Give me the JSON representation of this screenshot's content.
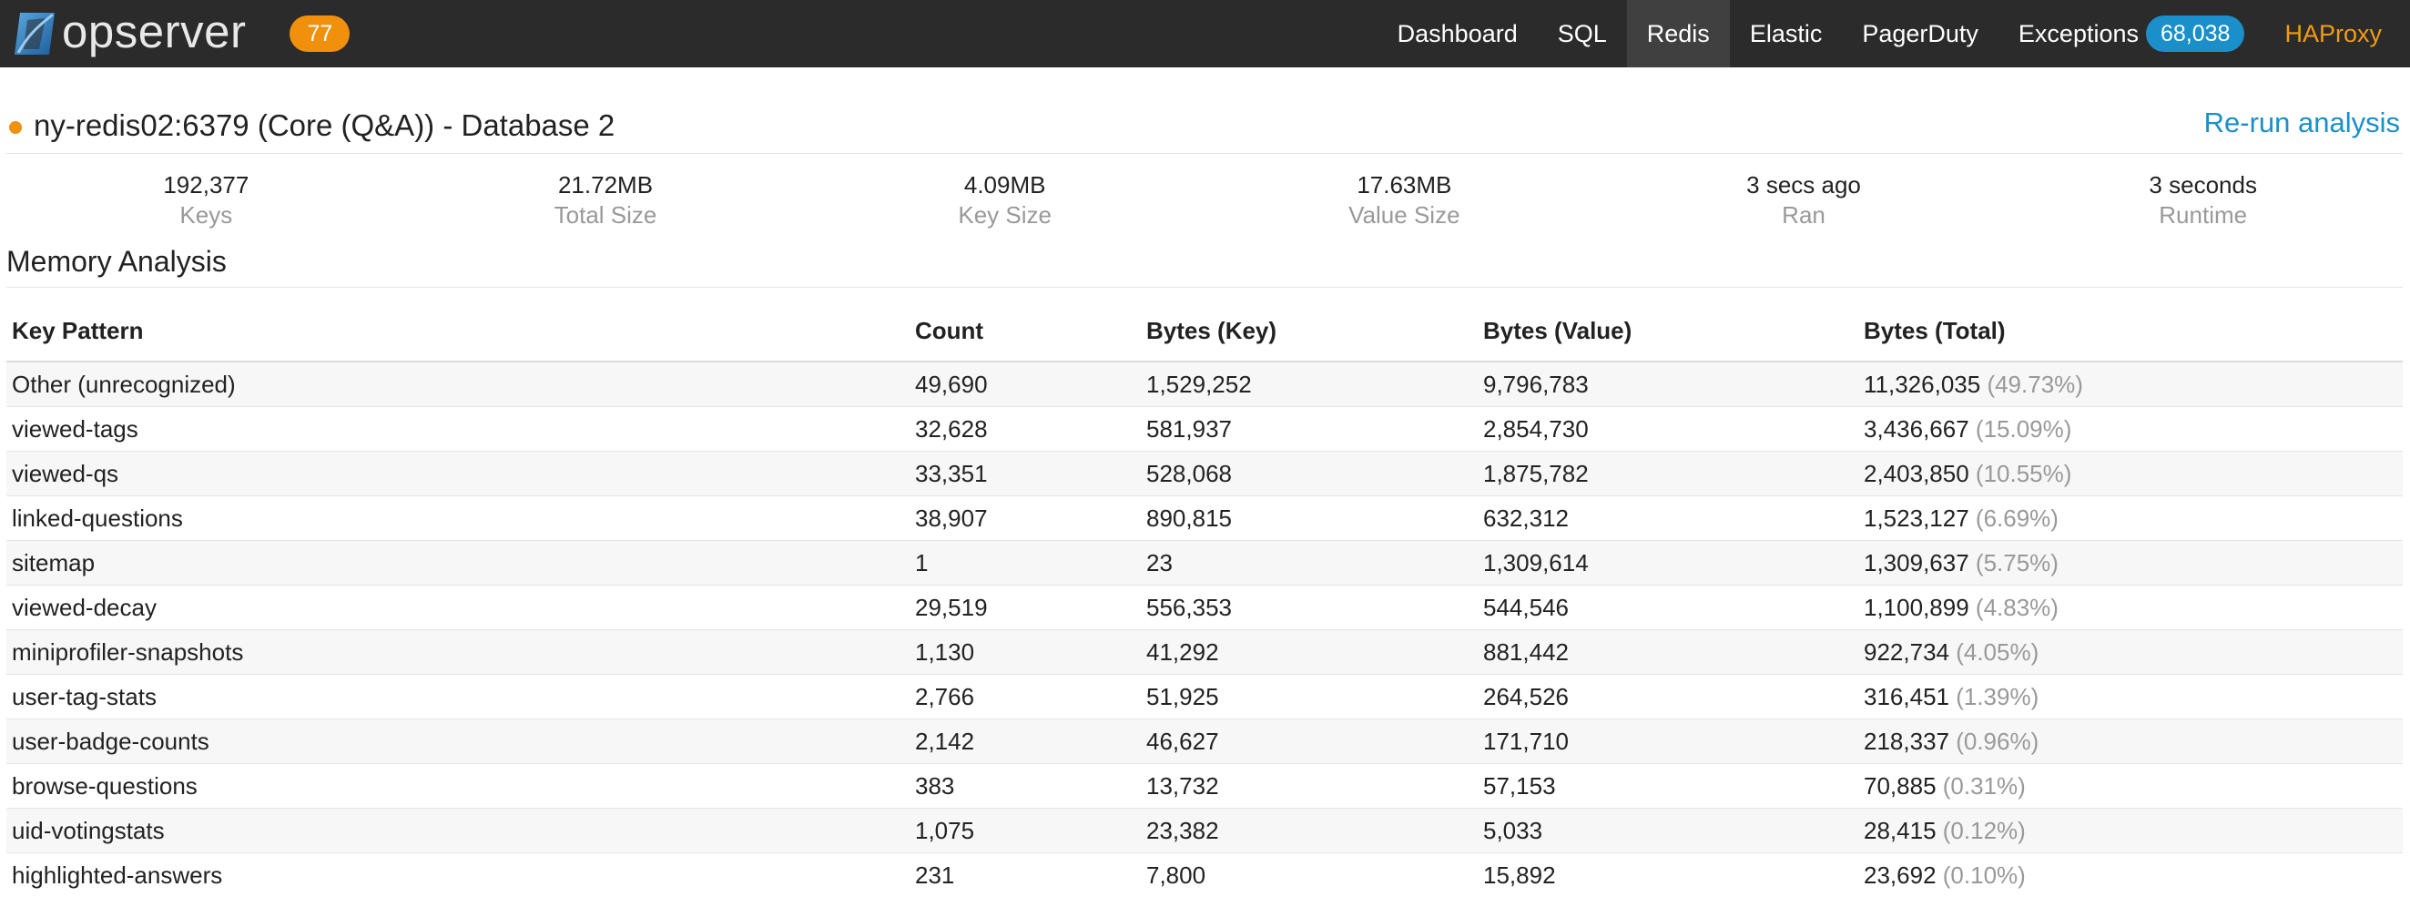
{
  "nav": {
    "brand": "opserver",
    "issues_count": "77",
    "items": [
      {
        "label": "Dashboard"
      },
      {
        "label": "SQL"
      },
      {
        "label": "Redis"
      },
      {
        "label": "Elastic"
      },
      {
        "label": "PagerDuty"
      },
      {
        "label": "Exceptions"
      },
      {
        "label": "HAProxy"
      }
    ],
    "exceptions_count": "68,038",
    "active": "Redis"
  },
  "header": {
    "title": "ny-redis02:6379 (Core (Q&A)) - Database 2",
    "rerun_label": "Re-run analysis"
  },
  "stats": [
    {
      "value": "192,377",
      "label": "Keys"
    },
    {
      "value": "21.72MB",
      "label": "Total Size"
    },
    {
      "value": "4.09MB",
      "label": "Key Size"
    },
    {
      "value": "17.63MB",
      "label": "Value Size"
    },
    {
      "value": "3 secs ago",
      "label": "Ran"
    },
    {
      "value": "3 seconds",
      "label": "Runtime"
    }
  ],
  "memory": {
    "section_title": "Memory Analysis",
    "columns": [
      "Key Pattern",
      "Count",
      "Bytes (Key)",
      "Bytes (Value)",
      "Bytes (Total)"
    ],
    "rows": [
      {
        "pattern": "Other (unrecognized)",
        "count": "49,690",
        "key": "1,529,252",
        "value": "9,796,783",
        "total": "11,326,035",
        "pct": "(49.73%)"
      },
      {
        "pattern": "viewed-tags",
        "count": "32,628",
        "key": "581,937",
        "value": "2,854,730",
        "total": "3,436,667",
        "pct": "(15.09%)"
      },
      {
        "pattern": "viewed-qs",
        "count": "33,351",
        "key": "528,068",
        "value": "1,875,782",
        "total": "2,403,850",
        "pct": "(10.55%)"
      },
      {
        "pattern": "linked-questions",
        "count": "38,907",
        "key": "890,815",
        "value": "632,312",
        "total": "1,523,127",
        "pct": "(6.69%)"
      },
      {
        "pattern": "sitemap",
        "count": "1",
        "key": "23",
        "value": "1,309,614",
        "total": "1,309,637",
        "pct": "(5.75%)"
      },
      {
        "pattern": "viewed-decay",
        "count": "29,519",
        "key": "556,353",
        "value": "544,546",
        "total": "1,100,899",
        "pct": "(4.83%)"
      },
      {
        "pattern": "miniprofiler-snapshots",
        "count": "1,130",
        "key": "41,292",
        "value": "881,442",
        "total": "922,734",
        "pct": "(4.05%)"
      },
      {
        "pattern": "user-tag-stats",
        "count": "2,766",
        "key": "51,925",
        "value": "264,526",
        "total": "316,451",
        "pct": "(1.39%)"
      },
      {
        "pattern": "user-badge-counts",
        "count": "2,142",
        "key": "46,627",
        "value": "171,710",
        "total": "218,337",
        "pct": "(0.96%)"
      },
      {
        "pattern": "browse-questions",
        "count": "383",
        "key": "13,732",
        "value": "57,153",
        "total": "70,885",
        "pct": "(0.31%)"
      },
      {
        "pattern": "uid-votingstats",
        "count": "1,075",
        "key": "23,382",
        "value": "5,033",
        "total": "28,415",
        "pct": "(0.12%)"
      },
      {
        "pattern": "highlighted-answers",
        "count": "231",
        "key": "7,800",
        "value": "15,892",
        "total": "23,692",
        "pct": "(0.10%)"
      }
    ]
  }
}
